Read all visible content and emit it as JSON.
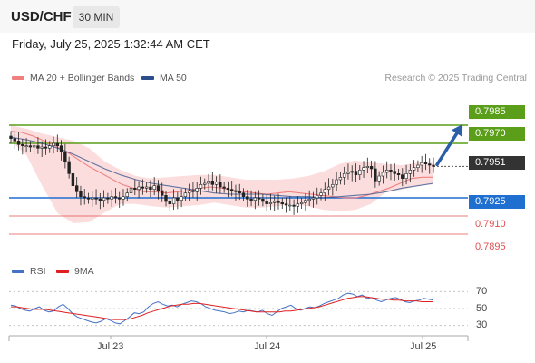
{
  "header": {
    "symbol": "USD/CHF",
    "timeframe": "30 MIN",
    "datetime": "Friday, July 25, 2025 1:32:44 AM CET"
  },
  "legend": {
    "items": [
      {
        "label": "MA 20 + Bollinger Bands",
        "color": "#f08080"
      },
      {
        "label": "MA 50",
        "color": "#2c4f8c"
      }
    ],
    "credit": "Research © 2025 Trading Central"
  },
  "chart_data": [
    {
      "type": "candlestick",
      "title": "",
      "ylim": [
        0.788,
        0.8
      ],
      "x_ticks": [
        "Jul 23",
        "Jul 24",
        "Jul 25"
      ],
      "levels": [
        {
          "label": "0.7985",
          "value": 0.7985,
          "role": "target",
          "color": "#5a9e1a"
        },
        {
          "label": "0.7970",
          "value": 0.797,
          "role": "resistance",
          "color": "#5a9e1a"
        },
        {
          "label": "0.7951",
          "value": 0.7951,
          "role": "last price",
          "color": "#333333"
        },
        {
          "label": "0.7925",
          "value": 0.7925,
          "role": "pivot",
          "color": "#1f6fd1"
        },
        {
          "label": "0.7910",
          "value": 0.791,
          "role": "support",
          "color": "#e05050"
        },
        {
          "label": "0.7895",
          "value": 0.7895,
          "role": "support",
          "color": "#e05050"
        }
      ],
      "close": [
        0.7974,
        0.7972,
        0.7969,
        0.7968,
        0.7968,
        0.7967,
        0.7968,
        0.7966,
        0.7967,
        0.7966,
        0.7968,
        0.797,
        0.7968,
        0.7963,
        0.7955,
        0.7945,
        0.7935,
        0.793,
        0.7926,
        0.7925,
        0.7924,
        0.7925,
        0.7924,
        0.7923,
        0.7925,
        0.7924,
        0.7926,
        0.7925,
        0.7924,
        0.7926,
        0.7929,
        0.7933,
        0.7932,
        0.7934,
        0.7933,
        0.7934,
        0.7932,
        0.7935,
        0.7931,
        0.7927,
        0.7922,
        0.792,
        0.7925,
        0.7923,
        0.7926,
        0.7929,
        0.7931,
        0.793,
        0.7933,
        0.7936,
        0.7937,
        0.7939,
        0.7936,
        0.7938,
        0.7934,
        0.7933,
        0.7932,
        0.7931,
        0.793,
        0.7929,
        0.7926,
        0.7924,
        0.7923,
        0.7925,
        0.7924,
        0.7922,
        0.792,
        0.7921,
        0.7922,
        0.7921,
        0.792,
        0.7919,
        0.7919,
        0.7918,
        0.792,
        0.7921,
        0.7923,
        0.7924,
        0.7925,
        0.7927,
        0.7929,
        0.7932,
        0.7934,
        0.7936,
        0.794,
        0.7942,
        0.7945,
        0.7946,
        0.7947,
        0.7944,
        0.7948,
        0.795,
        0.7951,
        0.7949,
        0.7939,
        0.7943,
        0.7946,
        0.7948,
        0.7947,
        0.7945,
        0.7944,
        0.7941,
        0.7945,
        0.7948,
        0.795,
        0.7952,
        0.7954,
        0.7953,
        0.7952,
        0.7951
      ],
      "ma20": [
        0.798,
        0.7979,
        0.7976,
        0.7972,
        0.7968,
        0.7963,
        0.7957,
        0.7951,
        0.7946,
        0.7941,
        0.7936,
        0.7933,
        0.793,
        0.793,
        0.7929,
        0.793,
        0.7931,
        0.7933,
        0.7934,
        0.7933,
        0.7931,
        0.793,
        0.7929,
        0.7928,
        0.7929,
        0.793,
        0.7929,
        0.7928,
        0.7927,
        0.7926,
        0.7925,
        0.7925,
        0.7927,
        0.793,
        0.7933,
        0.7937,
        0.7941,
        0.7942,
        0.7942
      ],
      "ma50": [
        0.7975,
        0.7973,
        0.797,
        0.7966,
        0.7961,
        0.7955,
        0.7949,
        0.7944,
        0.794,
        0.7937,
        0.7935,
        0.7933,
        0.7931,
        0.7929,
        0.7928,
        0.7928,
        0.7928,
        0.7927,
        0.7926,
        0.7926,
        0.7925,
        0.7926,
        0.7927,
        0.7928,
        0.793,
        0.7933,
        0.7935,
        0.7937
      ],
      "bb_upper": [
        0.7985,
        0.7982,
        0.7978,
        0.7975,
        0.7972,
        0.7966,
        0.7955,
        0.7948,
        0.7943,
        0.7941,
        0.7942,
        0.7943,
        0.7944,
        0.7944,
        0.7942,
        0.794,
        0.794,
        0.794,
        0.7941,
        0.7943,
        0.7947,
        0.7953,
        0.7956,
        0.7954,
        0.7953,
        0.7952,
        0.7954,
        0.7954
      ],
      "bb_lower": [
        0.7972,
        0.796,
        0.7935,
        0.7912,
        0.7904,
        0.7905,
        0.7913,
        0.792,
        0.792,
        0.7918,
        0.7917,
        0.7918,
        0.7919,
        0.7921,
        0.7919,
        0.7917,
        0.7917,
        0.7918,
        0.792,
        0.7918,
        0.7915,
        0.7914,
        0.7915,
        0.792,
        0.793,
        0.7932,
        0.7935,
        0.7936
      ],
      "forecast_arrow": {
        "from": 0.7951,
        "to": 0.7985
      }
    },
    {
      "type": "line",
      "title": "",
      "ylim": [
        20,
        80
      ],
      "y_ticks": [
        70,
        50,
        30
      ],
      "series": [
        {
          "name": "RSI",
          "color": "#4472c4",
          "values": [
            54,
            53,
            50,
            48,
            47,
            50,
            52,
            48,
            46,
            47,
            52,
            55,
            50,
            44,
            40,
            38,
            36,
            34,
            33,
            35,
            38,
            36,
            33,
            32,
            36,
            40,
            45,
            44,
            46,
            52,
            56,
            58,
            55,
            53,
            54,
            52,
            55,
            57,
            59,
            58,
            56,
            52,
            50,
            48,
            47,
            46,
            44,
            45,
            47,
            46,
            48,
            47,
            46,
            48,
            44,
            42,
            46,
            50,
            52,
            54,
            50,
            48,
            50,
            52,
            51,
            53,
            56,
            58,
            60,
            62,
            66,
            68,
            67,
            64,
            66,
            62,
            63,
            60,
            58,
            60,
            62,
            63,
            61,
            58,
            57,
            59,
            60,
            62,
            61,
            60
          ]
        },
        {
          "name": "9MA",
          "color": "#e02020",
          "values": [
            52,
            52,
            51,
            50,
            49,
            49,
            49,
            48,
            47,
            46,
            45,
            44,
            43,
            42,
            41,
            40,
            39,
            38,
            37,
            37,
            37,
            38,
            40,
            42,
            45,
            47,
            49,
            51,
            53,
            54,
            55,
            55,
            56,
            56,
            55,
            54,
            53,
            52,
            51,
            50,
            49,
            48,
            47,
            46,
            46,
            46,
            46,
            46,
            47,
            47,
            48,
            49,
            50,
            51,
            52,
            54,
            56,
            58,
            60,
            62,
            63,
            64,
            64,
            63,
            62,
            61,
            61,
            60,
            60,
            59,
            59,
            59,
            58,
            58,
            58
          ]
        }
      ]
    }
  ]
}
